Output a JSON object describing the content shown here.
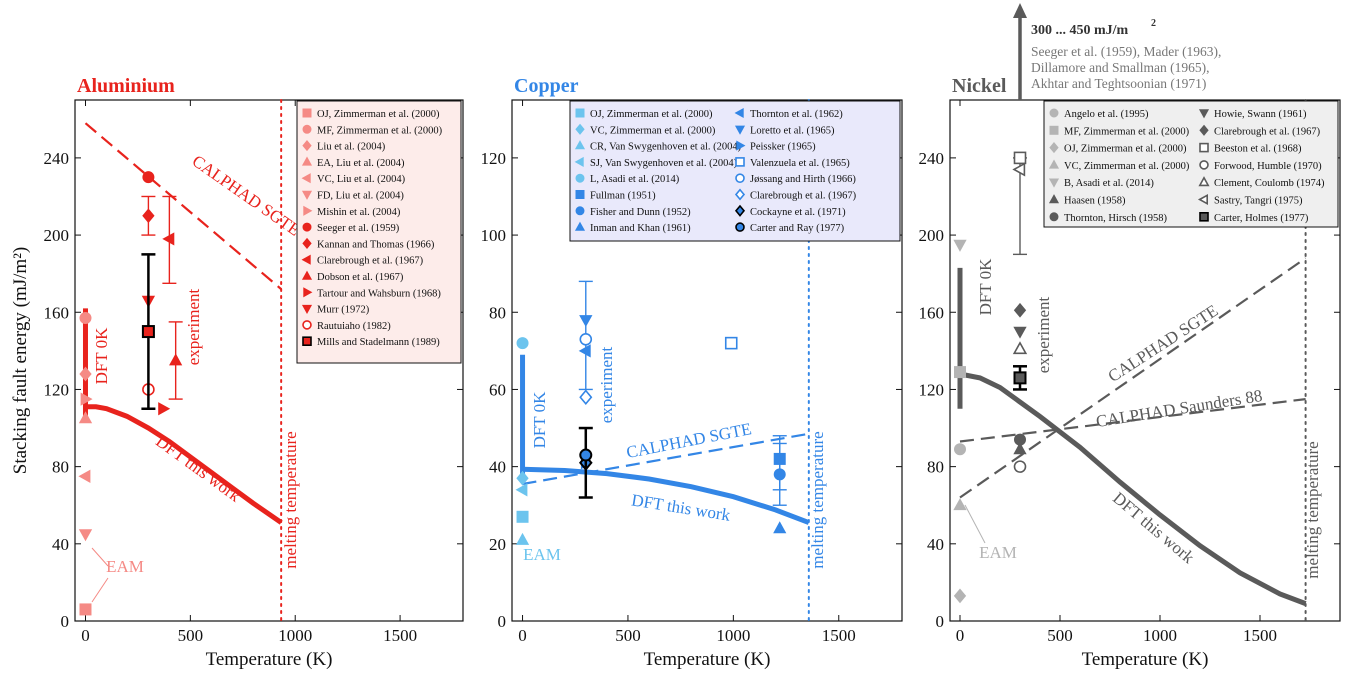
{
  "chart_data": [
    {
      "type": "line",
      "title": "Aluminium",
      "color": "#e8231d",
      "light_color": "#f58a85",
      "ylabel": "Stacking fault energy (mJ/m²)",
      "xlabel": "Temperature (K)",
      "xlim": [
        -50,
        1800
      ],
      "ylim": [
        0,
        270
      ],
      "xticks": [
        "0",
        "500",
        "1000",
        "1500"
      ],
      "yticks": [
        "0",
        "40",
        "80",
        "120",
        "160",
        "200",
        "240"
      ],
      "melting_T": 933,
      "melting_label": "melting temperature",
      "lines": [
        {
          "name": "DFT this work",
          "style": "solid",
          "x": [
            0,
            50,
            100,
            200,
            300,
            400,
            500,
            600,
            700,
            800,
            933
          ],
          "y": [
            111,
            111,
            110,
            106,
            100,
            93,
            85,
            77,
            69,
            61,
            51
          ]
        },
        {
          "name": "CALPHAD SGTE",
          "style": "dashed",
          "x": [
            0,
            933
          ],
          "y": [
            258,
            172
          ]
        }
      ],
      "dft0k_bar": {
        "x": 0,
        "y": [
          104,
          162
        ],
        "label": "DFT 0K"
      },
      "eam_label": "EAM",
      "experiment_label": "experiment",
      "points": [
        {
          "label": "OJ, Zimmerman et al. (2000)",
          "marker": "square",
          "fill": "light",
          "x": 0,
          "y": 6
        },
        {
          "label": "MF, Zimmerman et al. (2000)",
          "marker": "circle",
          "fill": "light",
          "x": 0,
          "y": 157
        },
        {
          "label": "Liu et al. (2004)",
          "marker": "diamond",
          "fill": "light",
          "x": 0,
          "y": 128
        },
        {
          "label": "EA, Liu et al. (2004)",
          "marker": "triangle-up",
          "fill": "light",
          "x": 0,
          "y": 105
        },
        {
          "label": "VC, Liu et al. (2004)",
          "marker": "triangle-left",
          "fill": "light",
          "x": 0,
          "y": 75
        },
        {
          "label": "FD, Liu et al. (2004)",
          "marker": "triangle-down",
          "fill": "light",
          "x": 0,
          "y": 45
        },
        {
          "label": "Mishin et al. (2004)",
          "marker": "triangle-right",
          "fill": "light",
          "x": 0,
          "y": 115
        },
        {
          "label": "Seeger et al. (1959)",
          "marker": "circle",
          "fill": "solid",
          "x": 300,
          "y": 230
        },
        {
          "label": "Kannan and Thomas (1966)",
          "marker": "diamond",
          "fill": "solid",
          "x": 300,
          "y": 210,
          "err": [
            200,
            220
          ]
        },
        {
          "label": "Clarebrough et al. (1967)",
          "marker": "triangle-left",
          "fill": "solid",
          "x": 400,
          "y": 198,
          "err": [
            175,
            220
          ]
        },
        {
          "label": "Dobson et al. (1967)",
          "marker": "triangle-up",
          "fill": "solid",
          "x": 430,
          "y": 135,
          "err": [
            115,
            155
          ]
        },
        {
          "label": "Tartour and Wahsburn (1968)",
          "marker": "triangle-right",
          "fill": "solid",
          "x": 370,
          "y": 110
        },
        {
          "label": "Murr (1972)",
          "marker": "triangle-down",
          "fill": "solid",
          "x": 300,
          "y": 166
        },
        {
          "label": "Rautuiaho (1982)",
          "marker": "circle",
          "fill": "open",
          "x": 300,
          "y": 120
        },
        {
          "label": "Mills and Stadelmann (1989)",
          "marker": "square",
          "fill": "black-edge",
          "x": 300,
          "y": 150,
          "err": [
            110,
            190
          ]
        }
      ]
    },
    {
      "type": "line",
      "title": "Copper",
      "color": "#3386e6",
      "light_color": "#6cc4ee",
      "xlabel": "Temperature (K)",
      "xlim": [
        -50,
        1800
      ],
      "ylim": [
        0,
        135
      ],
      "xticks": [
        "0",
        "500",
        "1000",
        "1500"
      ],
      "yticks": [
        "0",
        "20",
        "40",
        "60",
        "80",
        "100",
        "120"
      ],
      "melting_T": 1358,
      "melting_label": "melting temperature",
      "lines": [
        {
          "name": "DFT this work",
          "style": "solid",
          "x": [
            0,
            200,
            400,
            600,
            800,
            1000,
            1200,
            1358
          ],
          "y": [
            39.3,
            39.0,
            38.2,
            36.8,
            34.8,
            32.2,
            28.8,
            25.5
          ]
        },
        {
          "name": "CALPHAD SGTE",
          "style": "dashed",
          "x": [
            0,
            1358
          ],
          "y": [
            35.5,
            48.5
          ]
        }
      ],
      "dft0k_bar": {
        "x": 0,
        "y": [
          36,
          69
        ],
        "label": "DFT 0K"
      },
      "eam_label": "EAM",
      "experiment_label": "experiment",
      "points": [
        {
          "label": "OJ, Zimmerman et al. (2000)",
          "marker": "square",
          "fill": "light",
          "x": 0,
          "y": 27
        },
        {
          "label": "VC, Zimmerman et al. (2000)",
          "marker": "diamond",
          "fill": "light",
          "x": 0,
          "y": 37
        },
        {
          "label": "CR, Van Swygenhoven et al. (2004)",
          "marker": "triangle-up",
          "fill": "light",
          "x": 0,
          "y": 21
        },
        {
          "label": "SJ, Van Swygenhoven et al. (2004)",
          "marker": "triangle-left",
          "fill": "light",
          "x": 0,
          "y": 34
        },
        {
          "label": "L, Asadi et al. (2014)",
          "marker": "circle",
          "fill": "light",
          "x": 0,
          "y": 72
        },
        {
          "label": "Fullman (1951)",
          "marker": "square",
          "fill": "solid",
          "x": 1220,
          "y": 42,
          "err": [
            34,
            48
          ]
        },
        {
          "label": "Fisher and Dunn (1952)",
          "marker": "circle",
          "fill": "solid",
          "x": 1220,
          "y": 38,
          "err": [
            30,
            46
          ]
        },
        {
          "label": "Inman and Khan (1961)",
          "marker": "triangle-up",
          "fill": "solid",
          "x": 1220,
          "y": 24
        },
        {
          "label": "Thornton et al. (1962)",
          "marker": "triangle-left",
          "fill": "solid",
          "x": 300,
          "y": 70
        },
        {
          "label": "Loretto et al. (1965)",
          "marker": "triangle-down",
          "fill": "solid",
          "x": 300,
          "y": 78,
          "err": [
            60,
            88
          ]
        },
        {
          "label": "Peissker (1965)",
          "marker": "triangle-right",
          "fill": "solid",
          "x": 300,
          "y": 41
        },
        {
          "label": "Valenzuela et al. (1965)",
          "marker": "square",
          "fill": "open",
          "x": 990,
          "y": 72
        },
        {
          "label": "Jøssang and Hirth (1966)",
          "marker": "circle",
          "fill": "open",
          "x": 300,
          "y": 73
        },
        {
          "label": "Clarebrough et al. (1967)",
          "marker": "diamond",
          "fill": "open",
          "x": 300,
          "y": 58
        },
        {
          "label": "Cockayne et al. (1971)",
          "marker": "diamond",
          "fill": "black-edge",
          "x": 300,
          "y": 41
        },
        {
          "label": "Carter and Ray (1977)",
          "marker": "circle",
          "fill": "black-edge",
          "x": 300,
          "y": 43,
          "err": [
            32,
            50
          ]
        }
      ]
    },
    {
      "type": "line",
      "title": "Nickel",
      "color": "#5a5a5a",
      "light_color": "#b4b4b4",
      "xlabel": "Temperature (K)",
      "xlim": [
        -50,
        1900
      ],
      "ylim": [
        0,
        270
      ],
      "xticks": [
        "0",
        "500",
        "1000",
        "1500"
      ],
      "yticks": [
        "0",
        "40",
        "80",
        "120",
        "160",
        "200",
        "240"
      ],
      "melting_T": 1728,
      "melting_label": "melting temperature",
      "lines": [
        {
          "name": "DFT this work",
          "style": "solid",
          "x": [
            0,
            100,
            200,
            400,
            600,
            800,
            1000,
            1200,
            1400,
            1600,
            1728
          ],
          "y": [
            128,
            126,
            121,
            106,
            90,
            72,
            55,
            39,
            25,
            14,
            9
          ]
        },
        {
          "name": "CALPHAD SGTE",
          "style": "dashed",
          "x": [
            0,
            1728
          ],
          "y": [
            64,
            188
          ]
        },
        {
          "name": "CALPHAD Saunders 88",
          "style": "dashed",
          "x": [
            0,
            1728
          ],
          "y": [
            93,
            115
          ]
        }
      ],
      "dft0k_bar": {
        "x": 0,
        "y": [
          110,
          183
        ],
        "label": "DFT 0K"
      },
      "eam_label": "EAM",
      "experiment_label": "experiment",
      "arrow_text": {
        "title": "300 ... 450 mJ/m",
        "sup": "2",
        "lines": [
          "Seeger et al. (1959), Mader (1963),",
          "Dillamore and Smallman (1965),",
          "Akhtar and Teghtsoonian (1971)"
        ]
      },
      "points": [
        {
          "label": "Angelo et al. (1995)",
          "marker": "circle",
          "fill": "light",
          "x": 0,
          "y": 89
        },
        {
          "label": "MF, Zimmerman et al. (2000)",
          "marker": "square",
          "fill": "light",
          "x": 0,
          "y": 129
        },
        {
          "label": "OJ, Zimmerman et al. (2000)",
          "marker": "diamond",
          "fill": "light",
          "x": 0,
          "y": 13
        },
        {
          "label": "VC, Zimmerman et al. (2000)",
          "marker": "triangle-up",
          "fill": "light",
          "x": 0,
          "y": 60
        },
        {
          "label": "B, Asadi et al. (2014)",
          "marker": "triangle-down",
          "fill": "light",
          "x": 0,
          "y": 195
        },
        {
          "label": "Haasen (1958)",
          "marker": "triangle-up",
          "fill": "solid",
          "x": 300,
          "y": 89
        },
        {
          "label": "Thornton, Hirsch (1958)",
          "marker": "circle",
          "fill": "solid",
          "x": 300,
          "y": 94
        },
        {
          "label": "Howie, Swann (1961)",
          "marker": "triangle-down",
          "fill": "solid",
          "x": 300,
          "y": 150
        },
        {
          "label": "Clarebrough et al. (1967)",
          "marker": "diamond",
          "fill": "solid",
          "x": 300,
          "y": 161
        },
        {
          "label": "Beeston et al. (1968)",
          "marker": "square",
          "fill": "open",
          "x": 300,
          "y": 240,
          "err": [
            190,
            240
          ]
        },
        {
          "label": "Forwood, Humble (1970)",
          "marker": "circle",
          "fill": "open",
          "x": 300,
          "y": 80
        },
        {
          "label": "Clement, Coulomb (1974)",
          "marker": "triangle-up",
          "fill": "open",
          "x": 300,
          "y": 141
        },
        {
          "label": "Sastry, Tangri (1975)",
          "marker": "triangle-left",
          "fill": "open",
          "x": 300,
          "y": 234
        },
        {
          "label": "Carter, Holmes (1977)",
          "marker": "square",
          "fill": "black-edge",
          "x": 300,
          "y": 126,
          "err": [
            120,
            132
          ]
        }
      ]
    }
  ]
}
